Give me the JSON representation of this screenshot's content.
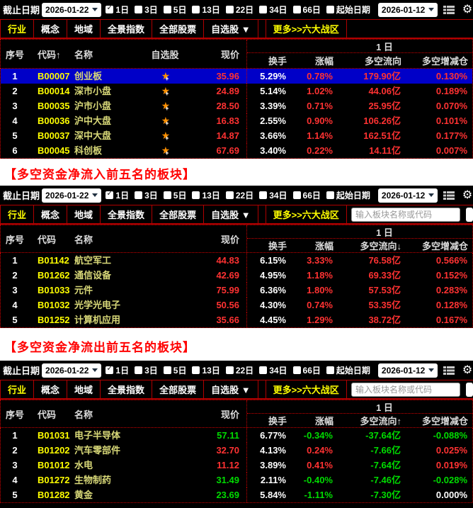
{
  "icons": {
    "gear": "⚙",
    "star": "★"
  },
  "colors": {
    "up_red": "#ff3232",
    "down_green": "#00dc00",
    "code_yellow": "#ffff00",
    "name_yellow": "#d8d878",
    "highlight_blue": "#0000c8",
    "line_red": "#cc0000",
    "title_red": "#ff0000",
    "tab_active_yellow": "#ffff00"
  },
  "toolbar": {
    "end_date_label": "截止日期",
    "end_date_value": "2026-01-22",
    "start_date_value": "2026-01-12",
    "checkboxes": [
      {
        "label": "1日",
        "checked": true
      },
      {
        "label": "3日",
        "checked": false
      },
      {
        "label": "5日",
        "checked": false
      },
      {
        "label": "13日",
        "checked": false
      },
      {
        "label": "22日",
        "checked": false
      },
      {
        "label": "34日",
        "checked": false
      },
      {
        "label": "66日",
        "checked": false
      },
      {
        "label": "起始日期",
        "checked": false
      }
    ]
  },
  "tabs": [
    {
      "label": "行业",
      "active": true
    },
    {
      "label": "概念"
    },
    {
      "label": "地域"
    },
    {
      "label": "全景指数"
    },
    {
      "label": "全部股票"
    },
    {
      "label": "自选股 ▼"
    },
    {
      "label": "更多>>六大战区",
      "highlight": true
    }
  ],
  "search": {
    "placeholder": "输入板块名称或代码"
  },
  "table": {
    "group_header": "1 日"
  },
  "section_titles": [
    "【多空资金净流入前五名的板块】",
    "【多空资金净流出前五名的板块】"
  ],
  "panels": [
    {
      "has_watchlist": true,
      "has_search": false,
      "header_left": [
        "序号",
        "代码↑",
        "名称",
        "自选股",
        "现价"
      ],
      "header_right": [
        "换手",
        "涨幅",
        "多空流向",
        "多空增减仓"
      ],
      "rows": [
        {
          "no": "1",
          "code": "B00007",
          "name": "创业板",
          "price": "35.96",
          "pc": "r",
          "turnover": "5.29%",
          "change": "0.78%",
          "cc": "r",
          "flow": "179.90亿",
          "fc": "r",
          "pos": "0.130%",
          "sc": "r",
          "hl": true
        },
        {
          "no": "2",
          "code": "B00014",
          "name": "深市小盘",
          "price": "24.89",
          "pc": "r",
          "turnover": "5.14%",
          "change": "1.02%",
          "cc": "r",
          "flow": "44.06亿",
          "fc": "r",
          "pos": "0.189%",
          "sc": "r"
        },
        {
          "no": "3",
          "code": "B00035",
          "name": "沪市小盘",
          "price": "28.50",
          "pc": "r",
          "turnover": "3.39%",
          "change": "0.71%",
          "cc": "r",
          "flow": "25.95亿",
          "fc": "r",
          "pos": "0.070%",
          "sc": "r"
        },
        {
          "no": "4",
          "code": "B00036",
          "name": "沪中大盘",
          "price": "16.83",
          "pc": "r",
          "turnover": "2.55%",
          "change": "0.90%",
          "cc": "r",
          "flow": "106.26亿",
          "fc": "r",
          "pos": "0.101%",
          "sc": "r"
        },
        {
          "no": "5",
          "code": "B00037",
          "name": "深中大盘",
          "price": "14.87",
          "pc": "r",
          "turnover": "3.66%",
          "change": "1.14%",
          "cc": "r",
          "flow": "162.51亿",
          "fc": "r",
          "pos": "0.177%",
          "sc": "r"
        },
        {
          "no": "6",
          "code": "B00045",
          "name": "科创板",
          "price": "67.69",
          "pc": "r",
          "turnover": "3.40%",
          "change": "0.22%",
          "cc": "r",
          "flow": "14.11亿",
          "fc": "r",
          "pos": "0.007%",
          "sc": "r"
        }
      ]
    },
    {
      "has_watchlist": false,
      "has_search": true,
      "header_left": [
        "序号",
        "代码",
        "名称",
        "现价"
      ],
      "header_right": [
        "换手",
        "涨幅",
        "多空流向↓",
        "多空增减仓"
      ],
      "rows": [
        {
          "no": "1",
          "code": "B01142",
          "name": "航空军工",
          "price": "44.83",
          "pc": "r",
          "turnover": "6.15%",
          "change": "3.33%",
          "cc": "r",
          "flow": "76.58亿",
          "fc": "r",
          "pos": "0.566%",
          "sc": "r"
        },
        {
          "no": "2",
          "code": "B01262",
          "name": "通信设备",
          "price": "42.69",
          "pc": "r",
          "turnover": "4.95%",
          "change": "1.18%",
          "cc": "r",
          "flow": "69.33亿",
          "fc": "r",
          "pos": "0.152%",
          "sc": "r"
        },
        {
          "no": "3",
          "code": "B01033",
          "name": "元件",
          "price": "75.99",
          "pc": "r",
          "turnover": "6.36%",
          "change": "1.80%",
          "cc": "r",
          "flow": "57.53亿",
          "fc": "r",
          "pos": "0.283%",
          "sc": "r"
        },
        {
          "no": "4",
          "code": "B01032",
          "name": "光学光电子",
          "price": "50.56",
          "pc": "r",
          "turnover": "4.30%",
          "change": "0.74%",
          "cc": "r",
          "flow": "53.35亿",
          "fc": "r",
          "pos": "0.128%",
          "sc": "r"
        },
        {
          "no": "5",
          "code": "B01252",
          "name": "计算机应用",
          "price": "35.66",
          "pc": "r",
          "turnover": "4.45%",
          "change": "1.29%",
          "cc": "r",
          "flow": "38.72亿",
          "fc": "r",
          "pos": "0.167%",
          "sc": "r"
        }
      ]
    },
    {
      "has_watchlist": false,
      "has_search": true,
      "header_left": [
        "序号",
        "代码",
        "名称",
        "现价"
      ],
      "header_right": [
        "换手",
        "涨幅",
        "多空流向↑",
        "多空增减仓"
      ],
      "rows": [
        {
          "no": "1",
          "code": "B01031",
          "name": "电子半导体",
          "price": "57.11",
          "pc": "g",
          "turnover": "6.77%",
          "change": "-0.34%",
          "cc": "g",
          "flow": "-37.64亿",
          "fc": "g",
          "pos": "-0.088%",
          "sc": "g"
        },
        {
          "no": "2",
          "code": "B01202",
          "name": "汽车零部件",
          "price": "32.70",
          "pc": "r",
          "turnover": "4.13%",
          "change": "0.24%",
          "cc": "r",
          "flow": "-7.66亿",
          "fc": "g",
          "pos": "0.025%",
          "sc": "r"
        },
        {
          "no": "3",
          "code": "B01012",
          "name": "水电",
          "price": "11.12",
          "pc": "r",
          "turnover": "3.89%",
          "change": "0.41%",
          "cc": "r",
          "flow": "-7.64亿",
          "fc": "g",
          "pos": "0.019%",
          "sc": "r"
        },
        {
          "no": "4",
          "code": "B01272",
          "name": "生物制药",
          "price": "31.49",
          "pc": "g",
          "turnover": "2.11%",
          "change": "-0.40%",
          "cc": "g",
          "flow": "-7.46亿",
          "fc": "g",
          "pos": "-0.028%",
          "sc": "g"
        },
        {
          "no": "5",
          "code": "B01282",
          "name": "黄金",
          "price": "23.69",
          "pc": "g",
          "turnover": "5.84%",
          "change": "-1.11%",
          "cc": "g",
          "flow": "-7.30亿",
          "fc": "g",
          "pos": "0.000%",
          "sc": "w"
        }
      ]
    }
  ]
}
